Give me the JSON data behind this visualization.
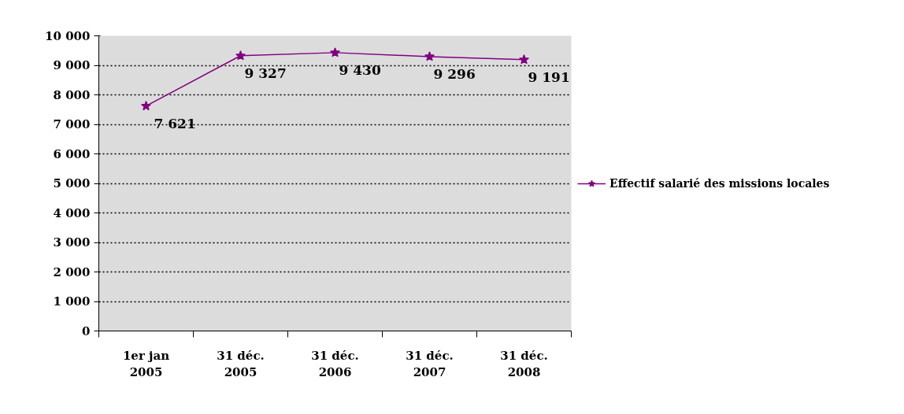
{
  "chart_data": {
    "type": "line",
    "categories": [
      "1er jan 2005",
      "31 déc. 2005",
      "31 déc. 2006",
      "31 déc. 2007",
      "31 déc. 2008"
    ],
    "series": [
      {
        "name": "Effectif salarié des missions locales",
        "color": "#800080",
        "values": [
          7621,
          9327,
          9430,
          9296,
          9191
        ],
        "value_labels": [
          "7 621",
          "9 327",
          "9 430",
          "9 296",
          "9 191"
        ]
      }
    ],
    "ylim": [
      0,
      10000
    ],
    "yticks": [
      0,
      {
        "value": 1000,
        "label": "1 000"
      },
      {
        "value": 2000,
        "label": "2 000"
      },
      {
        "value": 3000,
        "label": "3 000"
      },
      {
        "value": 4000,
        "label": "4 000"
      },
      {
        "value": 5000,
        "label": "5 000"
      },
      {
        "value": 6000,
        "label": "6 000"
      },
      {
        "value": 7000,
        "label": "7 000"
      },
      {
        "value": 8000,
        "label": "8 000"
      },
      {
        "value": 9000,
        "label": "9 000"
      },
      {
        "value": 10000,
        "label": "10 000"
      }
    ],
    "grid": "y",
    "legend": "right",
    "marker": "star",
    "line_style": "solid"
  }
}
